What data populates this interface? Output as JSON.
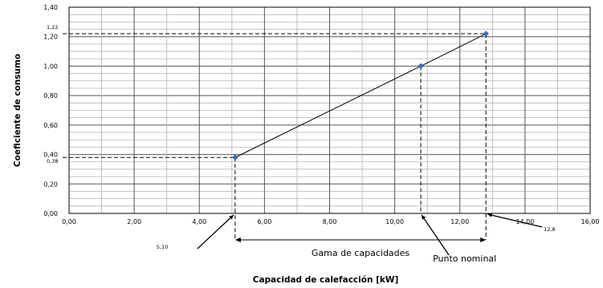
{
  "chart_data": {
    "type": "scatter",
    "xlabel": "Capacidad de calefacción [kW]",
    "ylabel": "Coeficiente de consumo",
    "xlim": [
      0,
      16
    ],
    "ylim": [
      0,
      1.4
    ],
    "x_ticks": [
      "0,00",
      "2,00",
      "4,00",
      "6,00",
      "8,00",
      "10,00",
      "12,00",
      "14,00",
      "16,00"
    ],
    "y_ticks": [
      "0,00",
      "0,20",
      "0,40",
      "0,60",
      "0,80",
      "1,00",
      "1,20",
      "1,40"
    ],
    "grid": true,
    "series": [
      {
        "points": [
          {
            "x": 5.1,
            "y": 0.38
          },
          {
            "x": 10.8,
            "y": 1.0
          },
          {
            "x": 12.8,
            "y": 1.22
          }
        ],
        "color": "#4472c4"
      }
    ],
    "annotations": {
      "y_low": "0,38",
      "y_high": "1,22",
      "x_low": "5,10",
      "x_high": "12,8",
      "range_label": "Gama de capacidades",
      "nominal_label": "Punto nominal"
    }
  }
}
